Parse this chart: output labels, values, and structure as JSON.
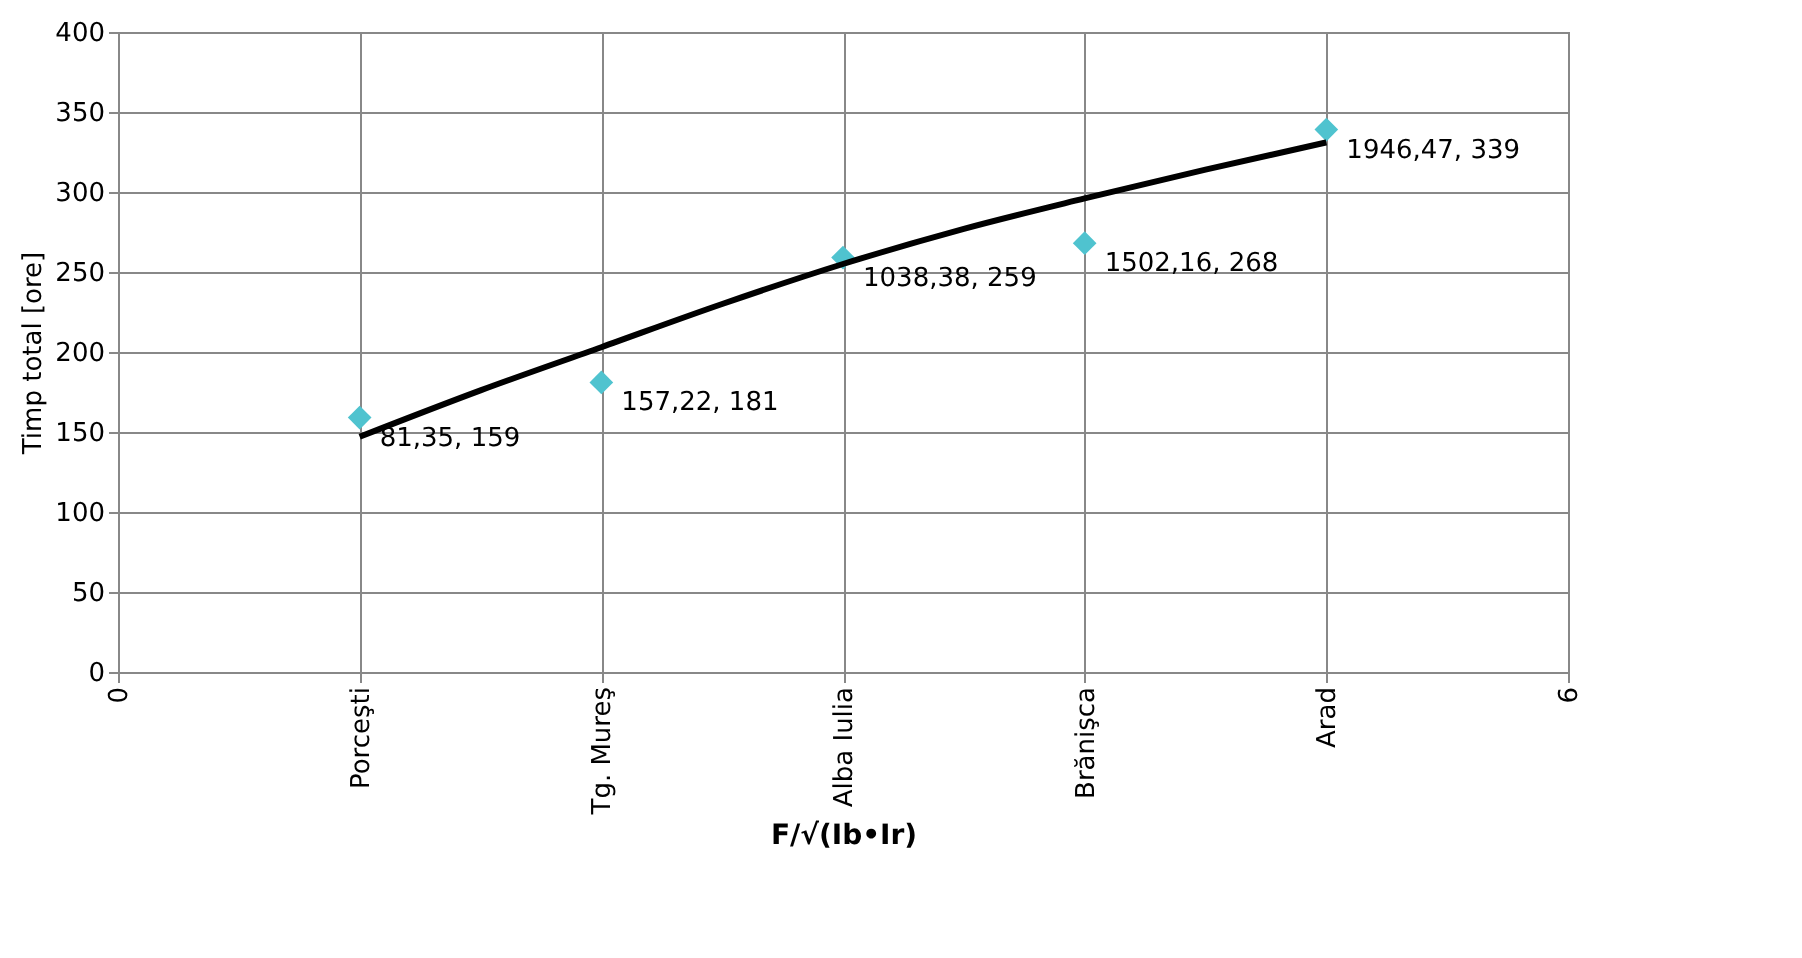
{
  "chart_data": {
    "type": "scatter",
    "ylabel": "Timp total [ore]",
    "xlabel": "F/√(Ib•Ir)",
    "xlim": [
      0,
      6
    ],
    "xticks": [
      0,
      {
        "value": 1,
        "label": "Porceşti"
      },
      {
        "value": 2,
        "label": "Tg. Mureş"
      },
      {
        "value": 3,
        "label": "Alba Iulia"
      },
      {
        "value": 4,
        "label": "Brănişca"
      },
      {
        "value": 5,
        "label": "Arad"
      },
      6
    ],
    "ylim": [
      0,
      400
    ],
    "yticks": [
      0,
      50,
      100,
      150,
      200,
      250,
      300,
      350,
      400
    ],
    "grid": true,
    "series": [
      {
        "marker": "diamond",
        "color": "#4fc3cf",
        "x": [
          1,
          2,
          3,
          4,
          5
        ],
        "values": [
          159,
          181,
          259,
          268,
          339
        ],
        "value_labels": [
          "81,35, 159",
          "157,22, 181",
          "1038,38, 259",
          "1502,16, 268",
          "1946,47, 339"
        ]
      },
      {
        "type": "line",
        "line_style": "solid",
        "color": "#000000",
        "x": [
          1,
          1.5,
          2,
          2.5,
          3,
          3.5,
          4,
          4.5,
          5
        ],
        "values": [
          147,
          176,
          203,
          230,
          255,
          277,
          296,
          314,
          331
        ]
      }
    ]
  }
}
